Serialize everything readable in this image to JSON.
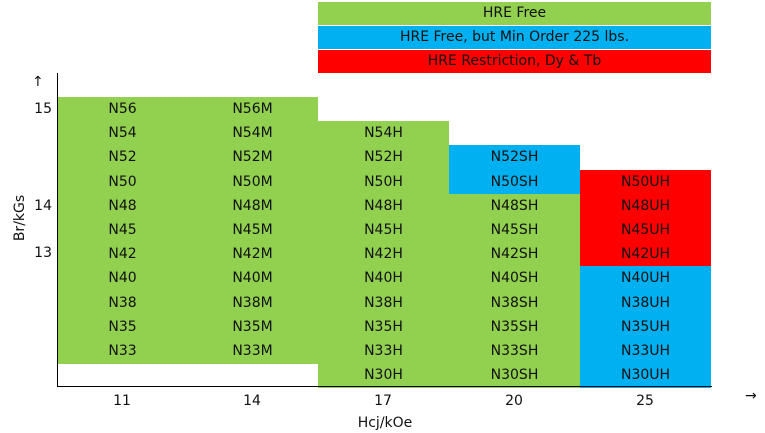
{
  "colors": {
    "green": "#92d050",
    "blue": "#00b0f0",
    "red": "#ff0000"
  },
  "legend": [
    {
      "label": "HRE Free",
      "color": "#92d050"
    },
    {
      "label": "HRE Free, but Min Order 225 lbs.",
      "color": "#00b0f0"
    },
    {
      "label": "HRE Restriction, Dy & Tb",
      "color": "#ff0000"
    }
  ],
  "axes": {
    "ylabel": "Br/kGs",
    "xlabel": "Hcj/kOe",
    "yticks": [
      "15",
      "14",
      "13"
    ],
    "xticks": [
      "11",
      "14",
      "17",
      "20",
      "25"
    ]
  },
  "grades": {
    "col_11": [
      "N56",
      "N54",
      "N52",
      "N50",
      "N48",
      "N45",
      "N42",
      "N40",
      "N38",
      "N35",
      "N33"
    ],
    "col_14": [
      "N56M",
      "N54M",
      "N52M",
      "N50M",
      "N48M",
      "N45M",
      "N42M",
      "N40M",
      "N38M",
      "N35M",
      "N33M"
    ],
    "col_17": [
      "N54H",
      "N52H",
      "N50H",
      "N48H",
      "N45H",
      "N42H",
      "N40H",
      "N38H",
      "N35H",
      "N33H",
      "N30H"
    ],
    "col_20": [
      "N52SH",
      "N50SH",
      "N48SH",
      "N45SH",
      "N42SH",
      "N40SH",
      "N38SH",
      "N35SH",
      "N33SH",
      "N30SH"
    ],
    "col_25": [
      "N50UH",
      "N48UH",
      "N45UH",
      "N42UH",
      "N40UH",
      "N38UH",
      "N35UH",
      "N33UH",
      "N30UH"
    ]
  }
}
